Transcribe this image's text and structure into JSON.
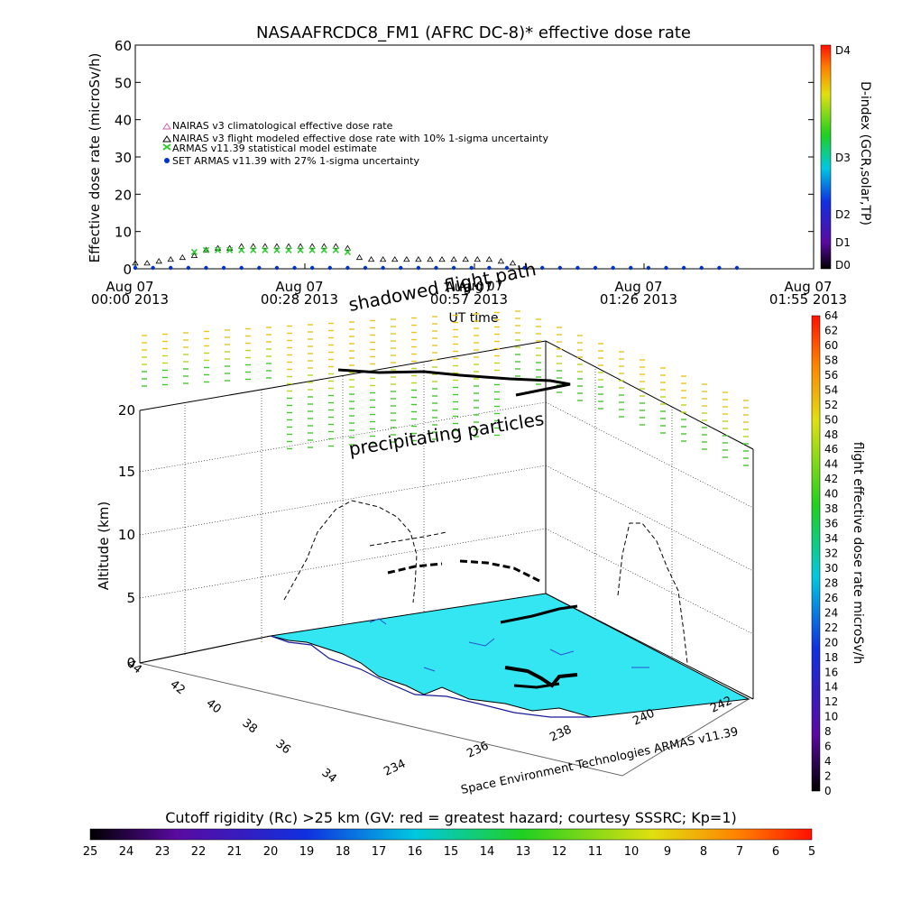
{
  "chart_data": [
    {
      "type": "scatter",
      "title": "NASAAFRCDC8_FM1 (AFRC DC-8)* effective dose rate",
      "xlabel": "UT time",
      "ylabel": "Effective dose rate (microSv/h)",
      "ylim": [
        0,
        60
      ],
      "yticks": [
        "0",
        "10",
        "20",
        "30",
        "40",
        "50",
        "60"
      ],
      "xticks": [
        {
          "date": "Aug 07",
          "time": "00:00 2013"
        },
        {
          "date": "Aug 07",
          "time": "00:28 2013"
        },
        {
          "date": "Aug 07",
          "time": "00:57 2013"
        },
        {
          "date": "Aug 07",
          "time": "01:26 2013"
        },
        {
          "date": "Aug 07",
          "time": "01:55 2013"
        }
      ],
      "xlim_minutes": [
        0,
        115
      ],
      "legend": [
        "NAIRAS v3 climatological effective dose rate",
        "NAIRAS v3 flight modeled effective dose rate with 10% 1-sigma uncertainty",
        "ARMAS v11.39 statistical model estimate",
        "SET ARMAS v11.39 with 27% 1-sigma uncertainty"
      ],
      "series": [
        {
          "name": "NAIRAS v3 flight modeled effective dose rate with 10% 1-sigma uncertainty",
          "color": "#000000",
          "marker": "triangle-open",
          "x_minutes": [
            0,
            2,
            4,
            6,
            8,
            10,
            12,
            14,
            16,
            18,
            20,
            22,
            24,
            26,
            28,
            30,
            32,
            34,
            36,
            38,
            40,
            42,
            44,
            46,
            48,
            50,
            52,
            54,
            56,
            58,
            60,
            62,
            64
          ],
          "values": [
            1,
            1,
            1.5,
            2,
            2.5,
            3,
            4.5,
            5,
            5,
            5.5,
            5.5,
            5.5,
            5.5,
            5.5,
            5.5,
            5.5,
            5.5,
            5.5,
            5,
            2.5,
            2,
            2,
            2,
            2,
            2,
            2,
            2,
            2,
            2,
            2,
            2,
            1.5,
            1
          ]
        },
        {
          "name": "ARMAS v11.39 statistical model estimate",
          "color": "#33cc33",
          "marker": "x",
          "x_minutes": [
            10,
            12,
            14,
            16,
            18,
            20,
            22,
            24,
            26,
            28,
            30,
            32,
            34,
            36
          ],
          "values": [
            4.5,
            5,
            5,
            5,
            5,
            5,
            5,
            5,
            5,
            5,
            5,
            5,
            5,
            4.5
          ]
        },
        {
          "name": "SET ARMAS v11.39 with 27% 1-sigma uncertainty",
          "color": "#0033cc",
          "marker": "dot",
          "x_minutes": [
            0,
            3,
            6,
            9,
            12,
            15,
            18,
            21,
            24,
            27,
            30,
            33,
            36,
            39,
            42,
            45,
            48,
            51,
            54,
            57,
            60,
            63,
            66,
            69,
            72,
            75,
            78,
            81,
            84,
            87,
            90,
            93,
            96,
            99,
            102
          ],
          "values": [
            0,
            0,
            0,
            0,
            0,
            0,
            0,
            0,
            0,
            0,
            0,
            0,
            0,
            0,
            0,
            0,
            0,
            0,
            0,
            0,
            0,
            0,
            0,
            0,
            0,
            0,
            0,
            0,
            0,
            0,
            0,
            0,
            0,
            0,
            0
          ]
        }
      ],
      "right_axis": {
        "label": "D-index (GCR,solar,TP)",
        "ticks": [
          "D0",
          "D1",
          "D2",
          "D3",
          "D4"
        ]
      },
      "overlay_text": [
        "shadowed flight path",
        "Aug 07",
        "00:57 2013"
      ]
    },
    {
      "type": "3d-flight-map",
      "zlabel": "Altitude (km)",
      "zticks": [
        "0",
        "5",
        "10",
        "15",
        "20"
      ],
      "zlim": [
        0,
        22
      ],
      "lat_ticks": [
        "34",
        "36",
        "38",
        "40",
        "42",
        "44"
      ],
      "lon_ticks": [
        "234",
        "236",
        "238",
        "240",
        "242"
      ],
      "annotations": [
        "shadowed flight path",
        "precipitating particles"
      ],
      "credit": "Space Environment Technologies ARMAS v11.39",
      "surface_color": "#33e6f2",
      "colorbar": {
        "label": "flight effective dose rate microSv/h",
        "ticks": [
          "0",
          "2",
          "4",
          "6",
          "8",
          "10",
          "12",
          "14",
          "16",
          "18",
          "20",
          "22",
          "24",
          "26",
          "28",
          "30",
          "32",
          "34",
          "36",
          "38",
          "40",
          "42",
          "44",
          "46",
          "48",
          "50",
          "52",
          "54",
          "56",
          "58",
          "60",
          "62",
          "64"
        ]
      }
    },
    {
      "type": "colorbar",
      "title": "Cutoff rigidity (Rc) >25 km (GV: red = greatest hazard; courtesy SSSRC; Kp=1)",
      "ticks": [
        "25",
        "24",
        "23",
        "22",
        "21",
        "20",
        "19",
        "18",
        "17",
        "16",
        "15",
        "14",
        "13",
        "12",
        "11",
        "10",
        "9",
        "8",
        "7",
        "6",
        "5"
      ]
    }
  ]
}
